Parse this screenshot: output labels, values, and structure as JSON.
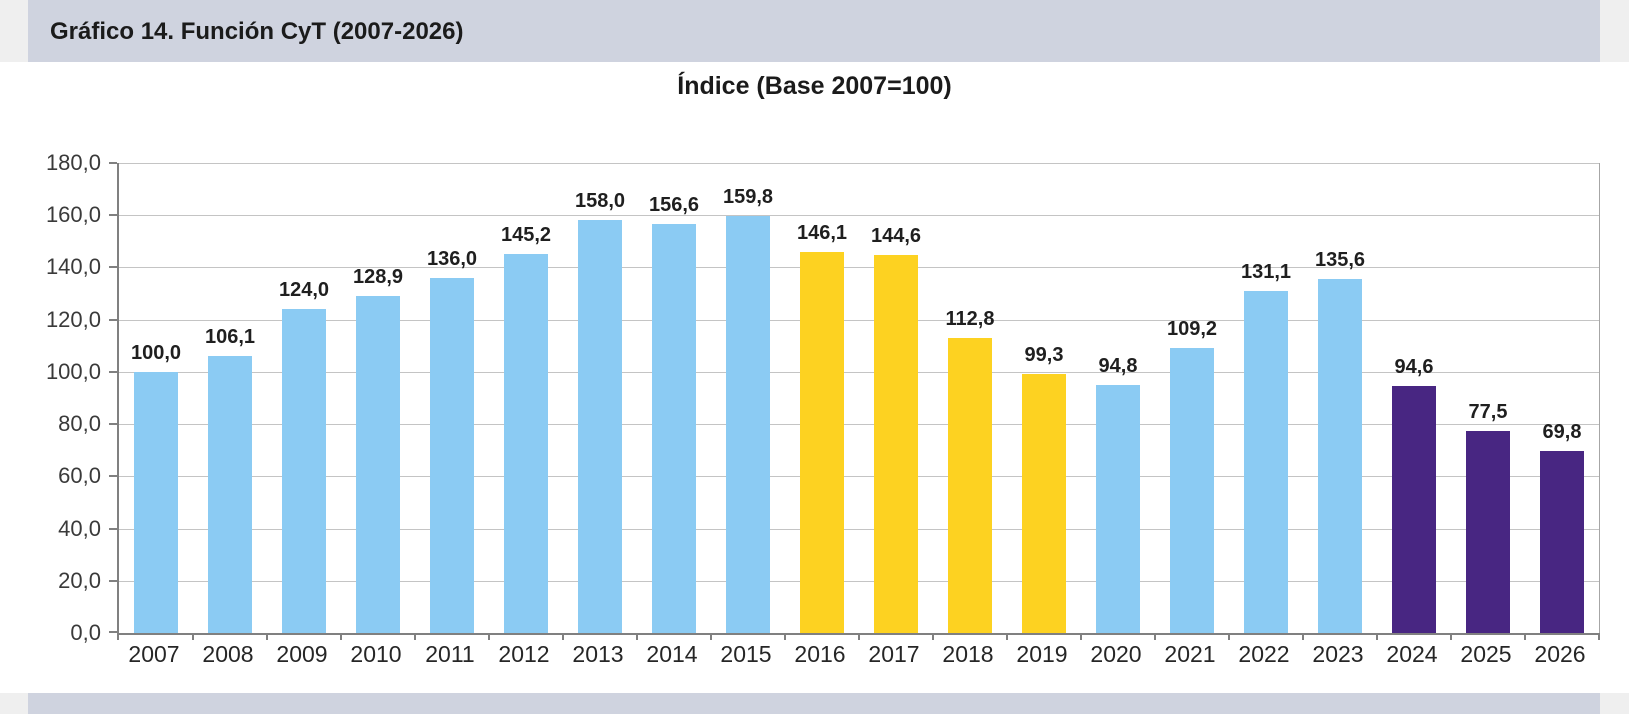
{
  "header": {
    "title": "Gráfico 14. Función CyT (2007-2026)"
  },
  "chart": {
    "subtitle": "Índice (Base 2007=100)"
  },
  "chart_data": {
    "type": "bar",
    "title": "Índice (Base 2007=100)",
    "xlabel": "",
    "ylabel": "",
    "ylim": [
      0,
      180
    ],
    "ytick_step": 20,
    "grid": true,
    "legend": "none",
    "y_tick_labels": [
      "0,0",
      "20,0",
      "40,0",
      "60,0",
      "80,0",
      "100,0",
      "120,0",
      "140,0",
      "160,0",
      "180,0"
    ],
    "colors": {
      "blue": "#8bcbf3",
      "yellow": "#fdd221",
      "purple": "#482682"
    },
    "categories": [
      "2007",
      "2008",
      "2009",
      "2010",
      "2011",
      "2012",
      "2013",
      "2014",
      "2015",
      "2016",
      "2017",
      "2018",
      "2019",
      "2020",
      "2021",
      "2022",
      "2023",
      "2024",
      "2025",
      "2026"
    ],
    "bars": [
      {
        "year": "2007",
        "value": 100.0,
        "label": "100,0",
        "color": "blue"
      },
      {
        "year": "2008",
        "value": 106.1,
        "label": "106,1",
        "color": "blue"
      },
      {
        "year": "2009",
        "value": 124.0,
        "label": "124,0",
        "color": "blue"
      },
      {
        "year": "2010",
        "value": 128.9,
        "label": "128,9",
        "color": "blue"
      },
      {
        "year": "2011",
        "value": 136.0,
        "label": "136,0",
        "color": "blue"
      },
      {
        "year": "2012",
        "value": 145.2,
        "label": "145,2",
        "color": "blue"
      },
      {
        "year": "2013",
        "value": 158.0,
        "label": "158,0",
        "color": "blue"
      },
      {
        "year": "2014",
        "value": 156.6,
        "label": "156,6",
        "color": "blue"
      },
      {
        "year": "2015",
        "value": 159.8,
        "label": "159,8",
        "color": "blue"
      },
      {
        "year": "2016",
        "value": 146.1,
        "label": "146,1",
        "color": "yellow"
      },
      {
        "year": "2017",
        "value": 144.6,
        "label": "144,6",
        "color": "yellow"
      },
      {
        "year": "2018",
        "value": 112.8,
        "label": "112,8",
        "color": "yellow"
      },
      {
        "year": "2019",
        "value": 99.3,
        "label": "99,3",
        "color": "yellow"
      },
      {
        "year": "2020",
        "value": 94.8,
        "label": "94,8",
        "color": "blue"
      },
      {
        "year": "2021",
        "value": 109.2,
        "label": "109,2",
        "color": "blue"
      },
      {
        "year": "2022",
        "value": 131.1,
        "label": "131,1",
        "color": "blue"
      },
      {
        "year": "2023",
        "value": 135.6,
        "label": "135,6",
        "color": "blue"
      },
      {
        "year": "2024",
        "value": 94.6,
        "label": "94,6",
        "color": "purple"
      },
      {
        "year": "2025",
        "value": 77.5,
        "label": "77,5",
        "color": "purple"
      },
      {
        "year": "2026",
        "value": 69.8,
        "label": "69,8",
        "color": "purple"
      }
    ]
  }
}
